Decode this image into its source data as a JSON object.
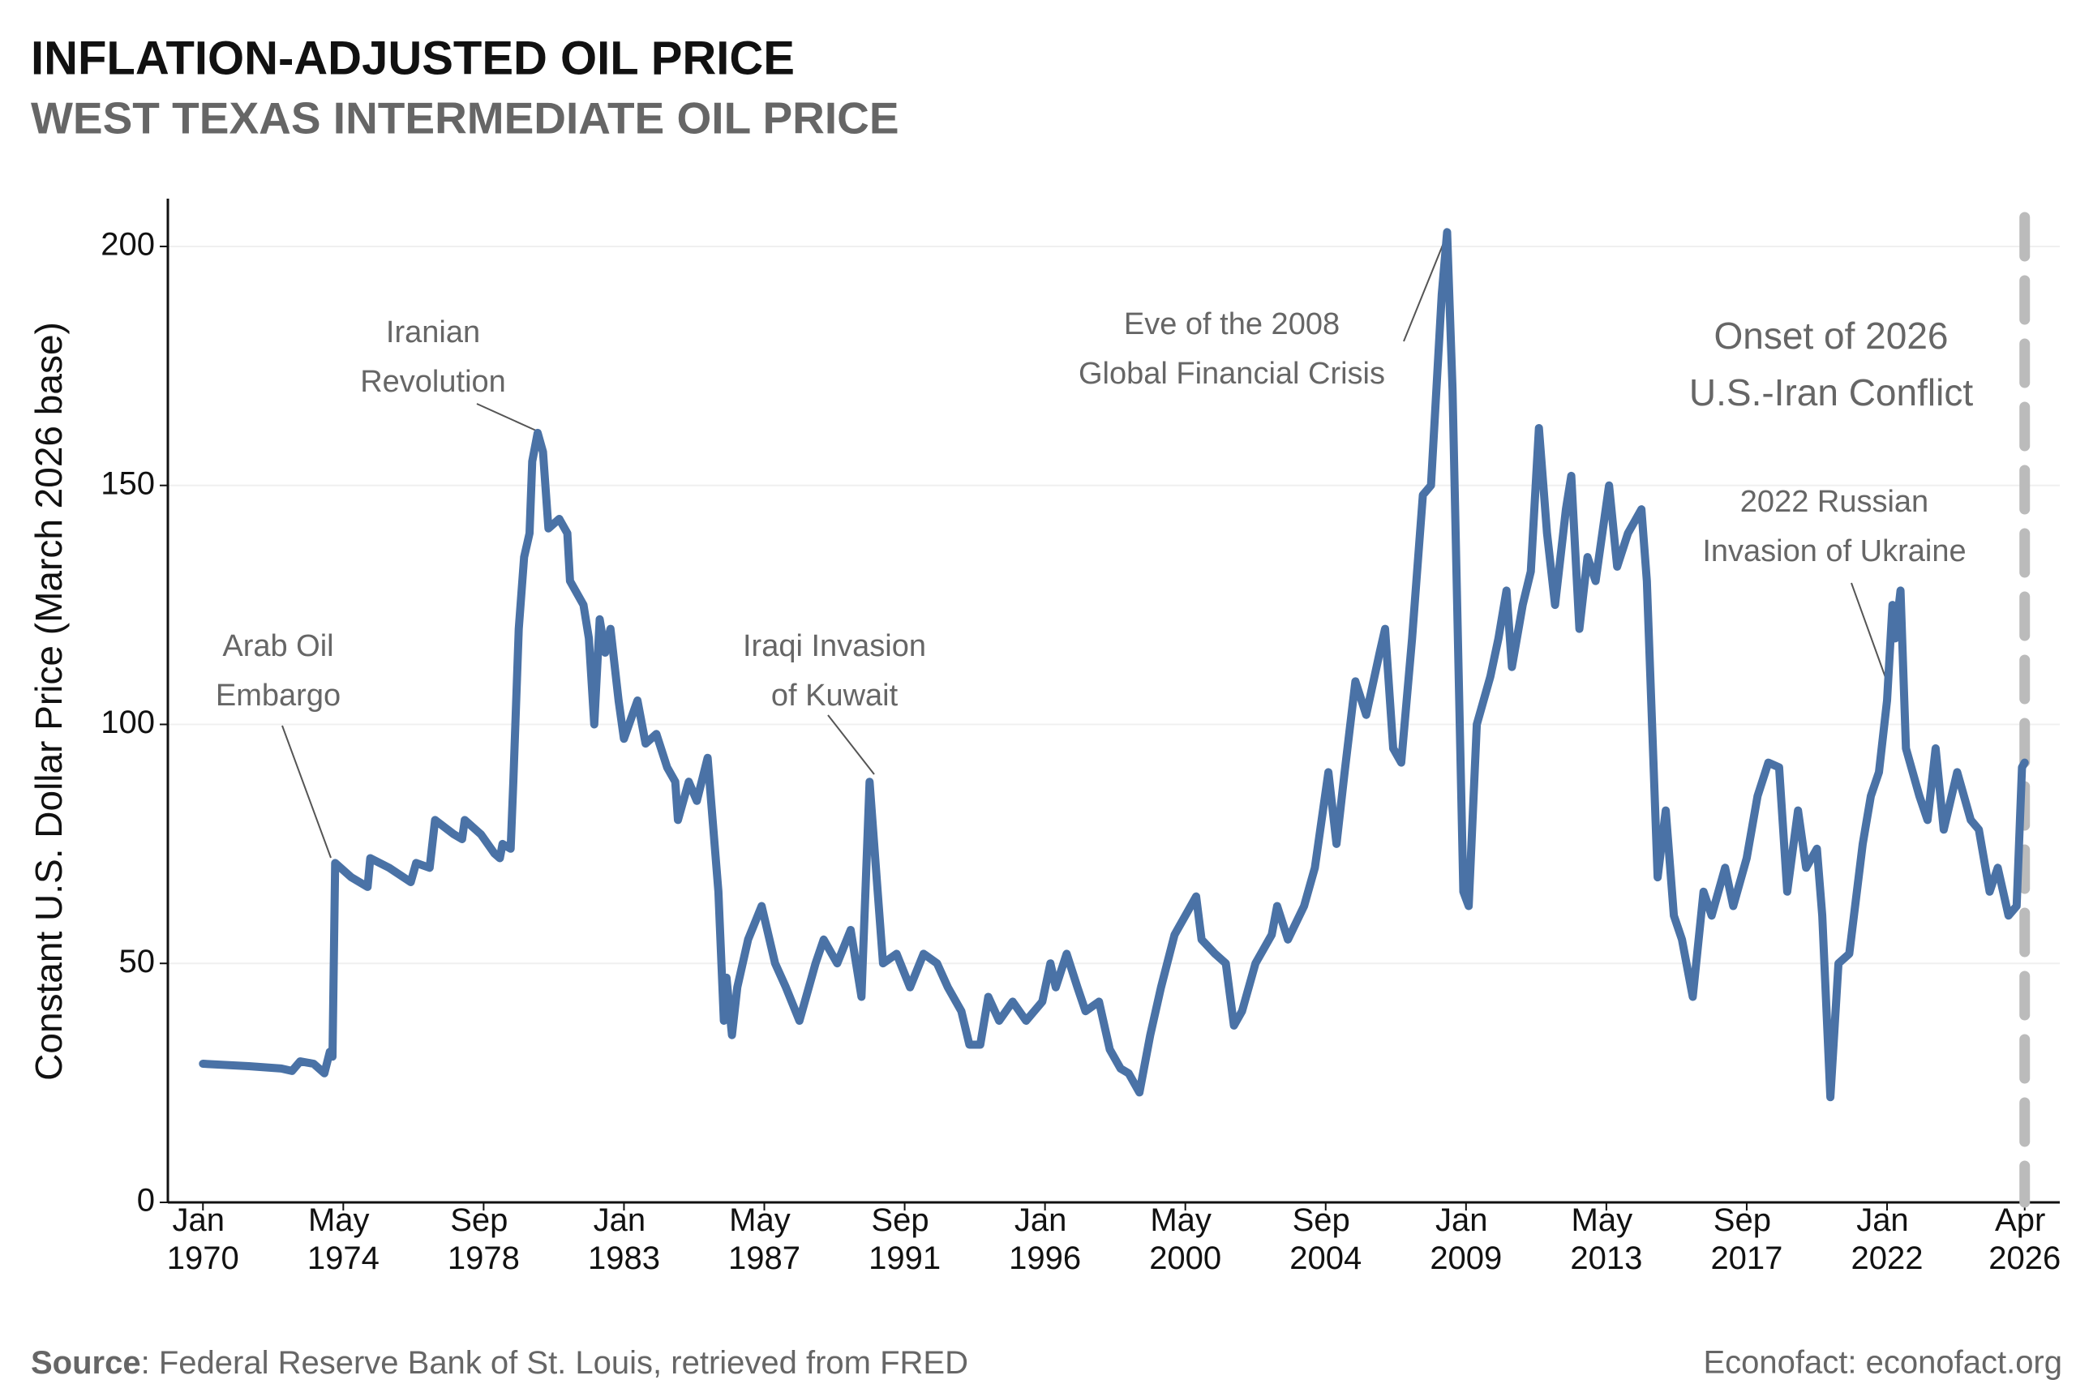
{
  "chart_data": {
    "type": "line",
    "title": "INFLATION-ADJUSTED OIL PRICE",
    "subtitle": "WEST TEXAS INTERMEDIATE OIL PRICE",
    "y_label": "Constant U.S. Dollar Price (March 2026 base)",
    "source_label": "Source",
    "source_text": ": Federal Reserve Bank of St. Louis, retrieved from FRED",
    "credit": "Econofact: econofact.org",
    "grid": true,
    "xlim": [
      "1968-12",
      "2027-05"
    ],
    "ylim": [
      0,
      210
    ],
    "yticks": [
      0,
      50,
      100,
      150,
      200
    ],
    "xticks": [
      {
        "value": "1970-01",
        "label": "Jan 1970"
      },
      {
        "value": "1974-05",
        "label": "May 1974"
      },
      {
        "value": "1978-09",
        "label": "Sep 1978"
      },
      {
        "value": "1983-01",
        "label": "Jan 1983"
      },
      {
        "value": "1987-05",
        "label": "May 1987"
      },
      {
        "value": "1991-09",
        "label": "Sep 1991"
      },
      {
        "value": "1996-01",
        "label": "Jan 1996"
      },
      {
        "value": "2000-05",
        "label": "May 2000"
      },
      {
        "value": "2004-09",
        "label": "Sep 2004"
      },
      {
        "value": "2009-01",
        "label": "Jan 2009"
      },
      {
        "value": "2013-05",
        "label": "May 2013"
      },
      {
        "value": "2017-09",
        "label": "Sep 2017"
      },
      {
        "value": "2022-01",
        "label": "Jan 2022"
      },
      {
        "value": "2026-04",
        "label": "Apr 2026"
      }
    ],
    "x": [
      "1970-01",
      "1971-06",
      "1972-06",
      "1972-10",
      "1973-01",
      "1973-06",
      "1973-10",
      "1973-12",
      "1974-01",
      "1974-02",
      "1974-08",
      "1975-02",
      "1975-03",
      "1975-10",
      "1976-06",
      "1976-08",
      "1977-01",
      "1977-03",
      "1977-10",
      "1978-01",
      "1978-02",
      "1978-08",
      "1979-01",
      "1979-03",
      "1979-04",
      "1979-07",
      "1979-08",
      "1979-10",
      "1979-12",
      "1980-02",
      "1980-03",
      "1980-05",
      "1980-07",
      "1980-09",
      "1981-01",
      "1981-04",
      "1981-05",
      "1981-10",
      "1981-12",
      "1982-02",
      "1982-04",
      "1982-06",
      "1982-08",
      "1982-11",
      "1983-01",
      "1983-06",
      "1983-09",
      "1984-01",
      "1984-05",
      "1984-08",
      "1984-09",
      "1985-01",
      "1985-04",
      "1985-08",
      "1985-12",
      "1986-02",
      "1986-03",
      "1986-05",
      "1986-07",
      "1986-11",
      "1987-04",
      "1987-09",
      "1988-01",
      "1988-06",
      "1988-12",
      "1989-03",
      "1989-08",
      "1990-01",
      "1990-05",
      "1990-08",
      "1990-11",
      "1991-01",
      "1991-06",
      "1991-11",
      "1992-04",
      "1992-09",
      "1993-01",
      "1993-06",
      "1993-09",
      "1994-01",
      "1994-04",
      "1994-08",
      "1995-01",
      "1995-06",
      "1995-12",
      "1996-03",
      "1996-05",
      "1996-09",
      "1997-01",
      "1997-04",
      "1997-09",
      "1998-01",
      "1998-05",
      "1998-08",
      "1998-12",
      "1999-04",
      "1999-08",
      "2000-01",
      "2000-05",
      "2000-09",
      "2000-11",
      "2001-04",
      "2001-08",
      "2001-11",
      "2002-02",
      "2002-07",
      "2003-01",
      "2003-03",
      "2003-07",
      "2004-01",
      "2004-05",
      "2004-10",
      "2005-01",
      "2005-04",
      "2005-08",
      "2005-12",
      "2006-05",
      "2006-07",
      "2006-10",
      "2007-01",
      "2007-05",
      "2007-09",
      "2007-12",
      "2008-04",
      "2008-06",
      "2008-08",
      "2008-12",
      "2009-02",
      "2009-05",
      "2009-10",
      "2010-01",
      "2010-04",
      "2010-06",
      "2010-10",
      "2011-01",
      "2011-04",
      "2011-07",
      "2011-10",
      "2012-02",
      "2012-04",
      "2012-07",
      "2012-10",
      "2013-01",
      "2013-06",
      "2013-09",
      "2014-01",
      "2014-06",
      "2014-08",
      "2014-12",
      "2015-03",
      "2015-06",
      "2015-09",
      "2016-01",
      "2016-05",
      "2016-08",
      "2017-01",
      "2017-04",
      "2017-09",
      "2018-01",
      "2018-05",
      "2018-09",
      "2018-12",
      "2019-04",
      "2019-07",
      "2019-11",
      "2020-01",
      "2020-04",
      "2020-07",
      "2020-11",
      "2021-04",
      "2021-07",
      "2021-10",
      "2022-01",
      "2022-03",
      "2022-04",
      "2022-06",
      "2022-08",
      "2023-01",
      "2023-04",
      "2023-07",
      "2023-10",
      "2024-03",
      "2024-08",
      "2024-11",
      "2025-03",
      "2025-06",
      "2025-10",
      "2026-01",
      "2026-03",
      "2026-04"
    ],
    "series": [
      {
        "name": "WTI",
        "color": "#4a72a6",
        "values": [
          29,
          28.5,
          28,
          27.5,
          29.5,
          29,
          27,
          31.5,
          30.5,
          71,
          68,
          66,
          72,
          70,
          67,
          71,
          70,
          80,
          77,
          76,
          80,
          77,
          73,
          72,
          75,
          74,
          88,
          120,
          135,
          140,
          155,
          161,
          157,
          141,
          143,
          140,
          130,
          125,
          118,
          100,
          122,
          115,
          120,
          105,
          97,
          105,
          96,
          98,
          91,
          88,
          80,
          88,
          84,
          93,
          65,
          38,
          47,
          35,
          45,
          55,
          62,
          50,
          45,
          38,
          50,
          55,
          50,
          57,
          43,
          88,
          65,
          50,
          52,
          45,
          52,
          50,
          45,
          40,
          33,
          33,
          43,
          38,
          42,
          38,
          42,
          50,
          45,
          52,
          45,
          40,
          42,
          32,
          28,
          27,
          23,
          35,
          45,
          56,
          60,
          64,
          55,
          52,
          50,
          37,
          40,
          50,
          56,
          62,
          55,
          62,
          70,
          90,
          75,
          90,
          109,
          102,
          115,
          120,
          95,
          92,
          118,
          148,
          150,
          190,
          203,
          170,
          65,
          62,
          100,
          110,
          118,
          128,
          112,
          125,
          132,
          162,
          140,
          125,
          145,
          152,
          120,
          135,
          130,
          150,
          133,
          140,
          145,
          130,
          68,
          82,
          60,
          55,
          43,
          65,
          60,
          70,
          62,
          72,
          85,
          92,
          91,
          65,
          82,
          70,
          74,
          60,
          22,
          50,
          52,
          75,
          85,
          90,
          105,
          125,
          118,
          128,
          95,
          85,
          80,
          95,
          78,
          90,
          80,
          78,
          65,
          70,
          60,
          62,
          91,
          92
        ]
      }
    ],
    "vline": {
      "x": "2026-04",
      "color": "#bbbbbb",
      "lines": [
        "Onset of 2026",
        "U.S.-Iran Conflict"
      ]
    },
    "annotations": [
      {
        "lines": [
          "Arab Oil",
          "Embargo"
        ]
      },
      {
        "lines": [
          "Iranian",
          "Revolution"
        ]
      },
      {
        "lines": [
          "Iraqi Invasion",
          "of Kuwait"
        ]
      },
      {
        "lines": [
          "Eve of the 2008",
          "Global Financial Crisis"
        ]
      },
      {
        "lines": [
          "2022 Russian",
          "Invasion of Ukraine"
        ]
      }
    ]
  }
}
